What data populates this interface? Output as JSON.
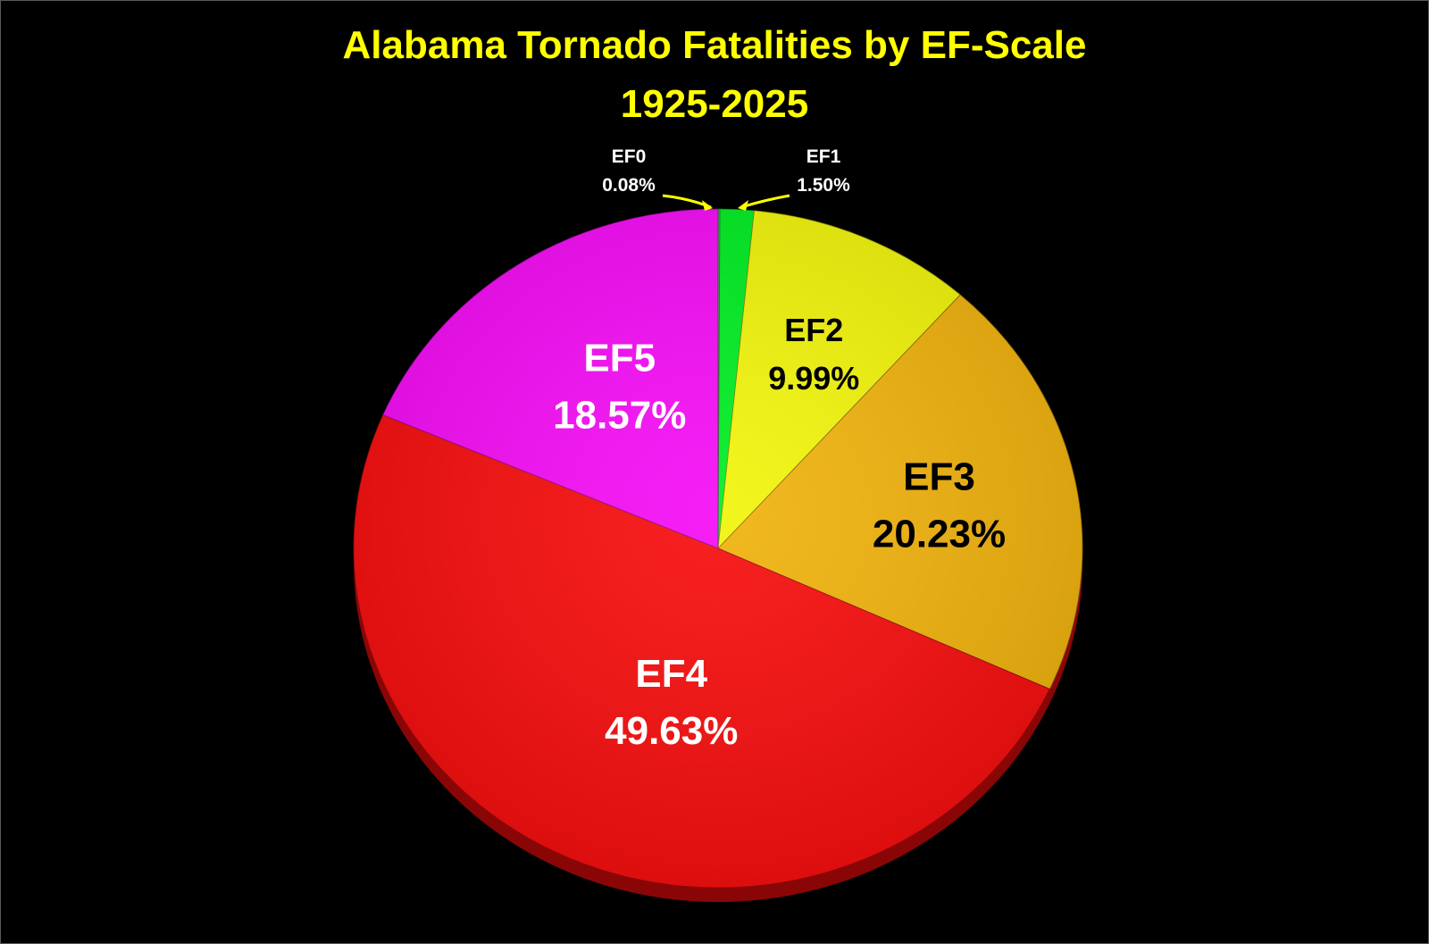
{
  "chart_data": {
    "type": "pie",
    "title_line1": "Alabama Tornado Fatalities by EF-Scale",
    "title_line2": "1925-2025",
    "slices": [
      {
        "label": "EF0",
        "value": 0.08,
        "value_text": "0.08%",
        "color": "#2ecc40"
      },
      {
        "label": "EF1",
        "value": 1.5,
        "value_text": "1.50%",
        "color": "#00ee22"
      },
      {
        "label": "EF2",
        "value": 9.99,
        "value_text": "9.99%",
        "color": "#f2f50a"
      },
      {
        "label": "EF3",
        "value": 20.23,
        "value_text": "20.23%",
        "color": "#f0b20c"
      },
      {
        "label": "EF4",
        "value": 49.63,
        "value_text": "49.63%",
        "color": "#f70d0d"
      },
      {
        "label": "EF5",
        "value": 18.57,
        "value_text": "18.57%",
        "color": "#f50cf5"
      }
    ],
    "colors": {
      "background": "#000000",
      "title": "#ffff00",
      "callout_arrow": "#ffff00",
      "dark_label": "#000000",
      "light_label": "#ffffff"
    }
  }
}
